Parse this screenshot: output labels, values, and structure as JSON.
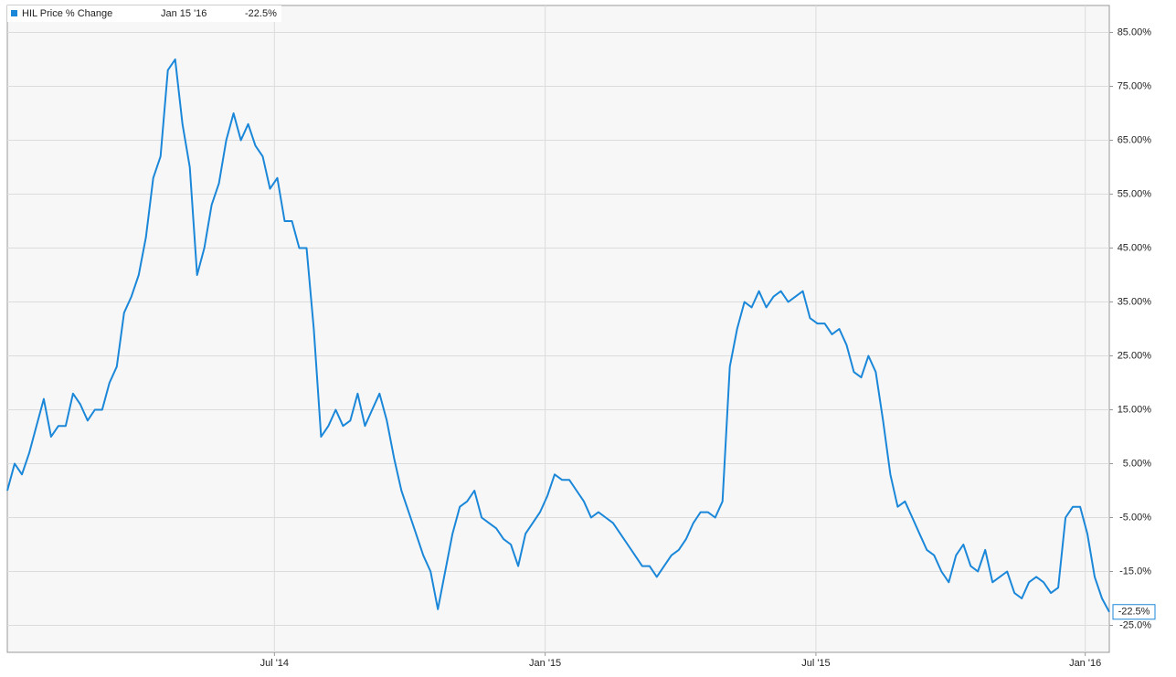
{
  "chart_data": {
    "type": "line",
    "legend": {
      "date": "Jan 15 '16",
      "value": "-22.5%"
    },
    "series": [
      {
        "name": "HIL Price % Change",
        "color": "#1a87d9",
        "values": [
          0,
          5,
          3,
          7,
          12,
          17,
          10,
          12,
          12,
          18,
          16,
          13,
          15,
          15,
          20,
          23,
          33,
          36,
          40,
          47,
          58,
          62,
          78,
          80,
          68,
          60,
          40,
          45,
          53,
          57,
          65,
          70,
          65,
          68,
          64,
          62,
          56,
          58,
          50,
          50,
          45,
          45,
          30,
          10,
          12,
          15,
          12,
          13,
          18,
          12,
          15,
          18,
          13,
          6,
          0,
          -4,
          -8,
          -12,
          -15,
          -22,
          -15,
          -8,
          -3,
          -2,
          0,
          -5,
          -6,
          -7,
          -9,
          -10,
          -14,
          -8,
          -6,
          -4,
          -1,
          3,
          2,
          2,
          0,
          -2,
          -5,
          -4,
          -5,
          -6,
          -8,
          -10,
          -12,
          -14,
          -14,
          -16,
          -14,
          -12,
          -11,
          -9,
          -6,
          -4,
          -4,
          -5,
          -2,
          23,
          30,
          35,
          34,
          37,
          34,
          36,
          37,
          35,
          36,
          37,
          32,
          31,
          31,
          29,
          30,
          27,
          22,
          21,
          25,
          22,
          13,
          3,
          -3,
          -2,
          -5,
          -8,
          -11,
          -12,
          -15,
          -17,
          -12,
          -10,
          -14,
          -15,
          -11,
          -17,
          -16,
          -15,
          -19,
          -20,
          -17,
          -16,
          -17,
          -19,
          -18,
          -5,
          -3,
          -3,
          -8,
          -16,
          -20,
          -22.5
        ]
      }
    ],
    "xlim": [
      0,
      151
    ],
    "xticks": [
      {
        "value": 36.6,
        "label": "Jul '14"
      },
      {
        "value": 73.7,
        "label": "Jan '15"
      },
      {
        "value": 110.8,
        "label": "Jul '15"
      },
      {
        "value": 147.7,
        "label": "Jan '16"
      }
    ],
    "ylim": [
      -30,
      90
    ],
    "yticks": [
      {
        "value": 85,
        "label": "85.00%"
      },
      {
        "value": 75,
        "label": "75.00%"
      },
      {
        "value": 65,
        "label": "65.00%"
      },
      {
        "value": 55,
        "label": "55.00%"
      },
      {
        "value": 45,
        "label": "45.00%"
      },
      {
        "value": 35,
        "label": "35.00%"
      },
      {
        "value": 25,
        "label": "25.00%"
      },
      {
        "value": 15,
        "label": "15.00%"
      },
      {
        "value": 5,
        "label": "5.00%"
      },
      {
        "value": -5,
        "label": "-5.00%"
      },
      {
        "value": -15,
        "label": "-15.0%"
      },
      {
        "value": -25,
        "label": "-25.0%"
      }
    ],
    "grid": true
  }
}
